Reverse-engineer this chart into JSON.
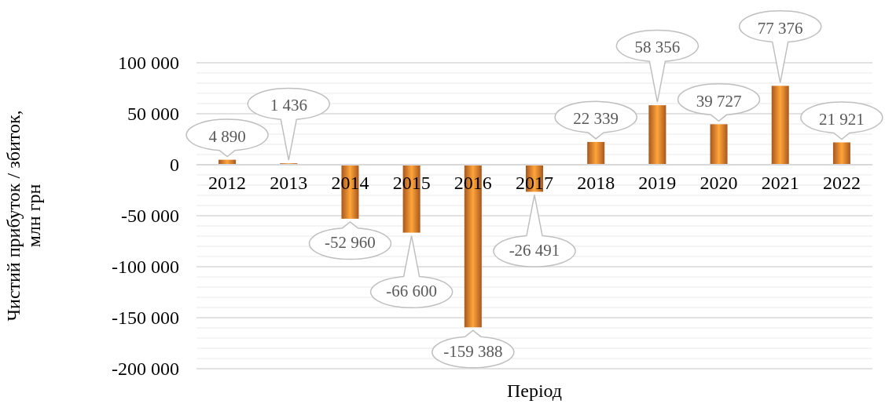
{
  "chart_data": {
    "type": "bar",
    "xlabel": "Період",
    "ylabel": "Чистий прибуток / збиток, млн грн",
    "categories": [
      "2012",
      "2013",
      "2014",
      "2015",
      "2016",
      "2017",
      "2018",
      "2019",
      "2020",
      "2021",
      "2022"
    ],
    "values": [
      4890,
      1436,
      -52960,
      -66600,
      -159388,
      -26491,
      22339,
      58356,
      39727,
      77376,
      21921
    ],
    "color": "#e8782a",
    "ylim": [
      -200000,
      100000
    ],
    "yticks": [
      {
        "value": -200000,
        "label": "-200 000"
      },
      {
        "value": -150000,
        "label": "-150 000"
      },
      {
        "value": -100000,
        "label": "-100 000"
      },
      {
        "value": -50000,
        "label": "-50 000"
      },
      0,
      {
        "value": 50000,
        "label": "50 000"
      },
      {
        "value": 100000,
        "label": "100 000"
      }
    ],
    "grid": "y",
    "data_labels": true
  }
}
